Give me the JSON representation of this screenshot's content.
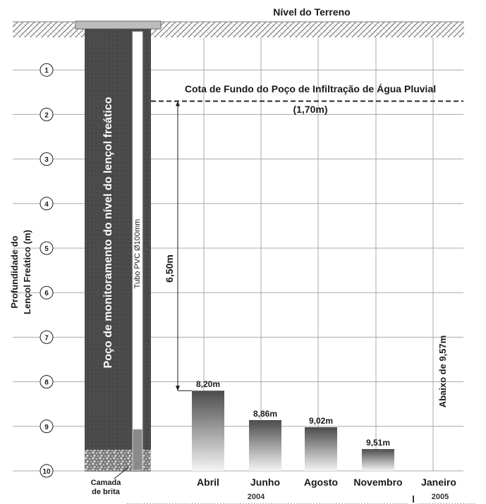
{
  "chart_data": {
    "type": "bar",
    "title": "Nível do Terreno",
    "ylabel_lines": [
      "Profundidade do",
      "Lençol Freático (m)"
    ],
    "y_axis": {
      "direction": "down",
      "ylim": [
        0,
        10
      ],
      "ticks": [
        1,
        2,
        3,
        4,
        5,
        6,
        7,
        8,
        9,
        10
      ]
    },
    "grid": true,
    "categories": [
      "Abril",
      "Junho",
      "Agosto",
      "Novembro",
      "Janeiro"
    ],
    "values": [
      8.2,
      8.86,
      9.02,
      9.51,
      null
    ],
    "value_labels": [
      "8,20m",
      "8,86m",
      "9,02m",
      "9,51m",
      ""
    ],
    "year_labels": [
      {
        "text": "2004",
        "position": "under-categories-1-3"
      },
      {
        "text": "2005",
        "position": "under-category-5"
      }
    ],
    "annotations": {
      "well_label": "Poço de monitoramento do nível do lençol freático",
      "pipe_label": "Tubo PVC Ø100mm",
      "gravel_label_lines": [
        "Camada",
        "de brita"
      ],
      "infiltration_line_lines": [
        "Cota de Fundo do Poço de Infiltração de Água Pluvial",
        "(1,70m)"
      ],
      "infiltration_depth": 1.7,
      "distance_label": "6,50m",
      "distance_from": 1.7,
      "distance_to": 8.2,
      "janeiro_note": "Abaixo de 9,57m"
    }
  },
  "colors": {
    "grid": "#a8a8a8",
    "well_dark": "#4a4a4a",
    "bar_top": "#4c4c4c",
    "bar_bottom": "#f4f4f4",
    "dash_line": "#2a2a2a",
    "text": "#1a1a1a"
  }
}
